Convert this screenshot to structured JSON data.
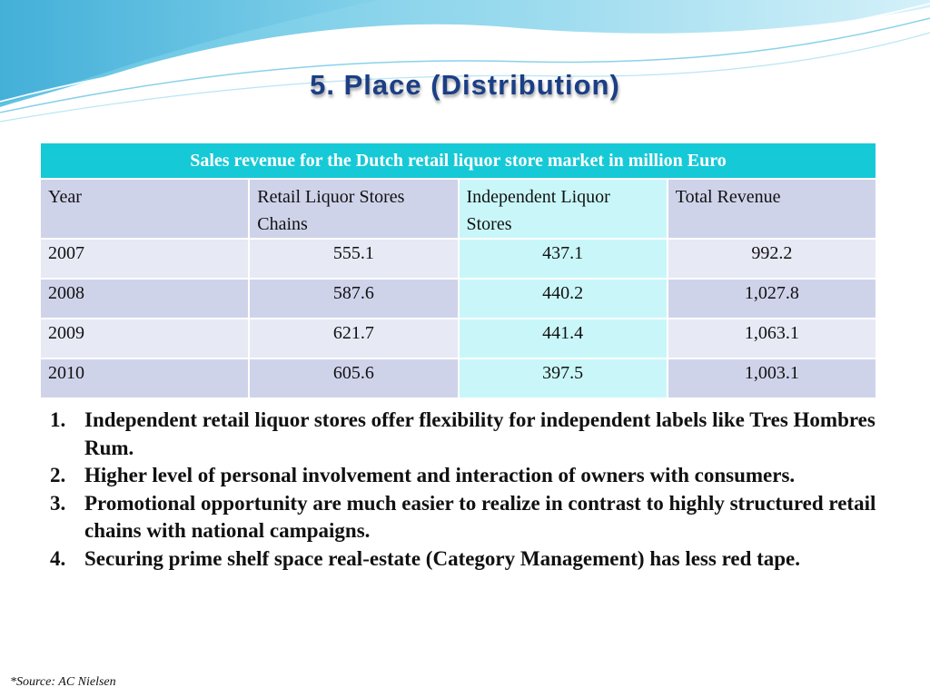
{
  "slide": {
    "title": "5. Place (Distribution)"
  },
  "table": {
    "caption": "Sales revenue for the Dutch retail liquor store market in million Euro",
    "headers": [
      "Year",
      "Retail Liquor Stores Chains",
      "Independent Liquor Stores",
      "Total Revenue"
    ],
    "rows": [
      [
        "2007",
        "555.1",
        "437.1",
        "992.2"
      ],
      [
        "2008",
        "587.6",
        "440.2",
        "1,027.8"
      ],
      [
        "2009",
        "621.7",
        "441.4",
        "1,063.1"
      ],
      [
        "2010",
        "605.6",
        "397.5",
        "1,003.1"
      ]
    ]
  },
  "points": [
    {
      "num": "1.",
      "text": "Independent retail liquor stores offer flexibility for independent labels like Tres Hombres Rum."
    },
    {
      "num": "2.",
      "text": "Higher level of personal involvement and interaction of owners with consumers."
    },
    {
      "num": "3.",
      "text": "Promotional opportunity are much easier to realize in contrast to highly structured retail chains with national campaigns."
    },
    {
      "num": "4.",
      "text": "Securing prime shelf space real-estate (Category Management) has less red tape."
    }
  ],
  "source": "*Source: AC Nielsen",
  "colors": {
    "title": "#1b3f86",
    "caption_bg": "#16c9d6",
    "cell_dark": "#cfd3ea",
    "cell_light": "#e7e9f5",
    "cell_cyan": "#c9f7f9"
  }
}
